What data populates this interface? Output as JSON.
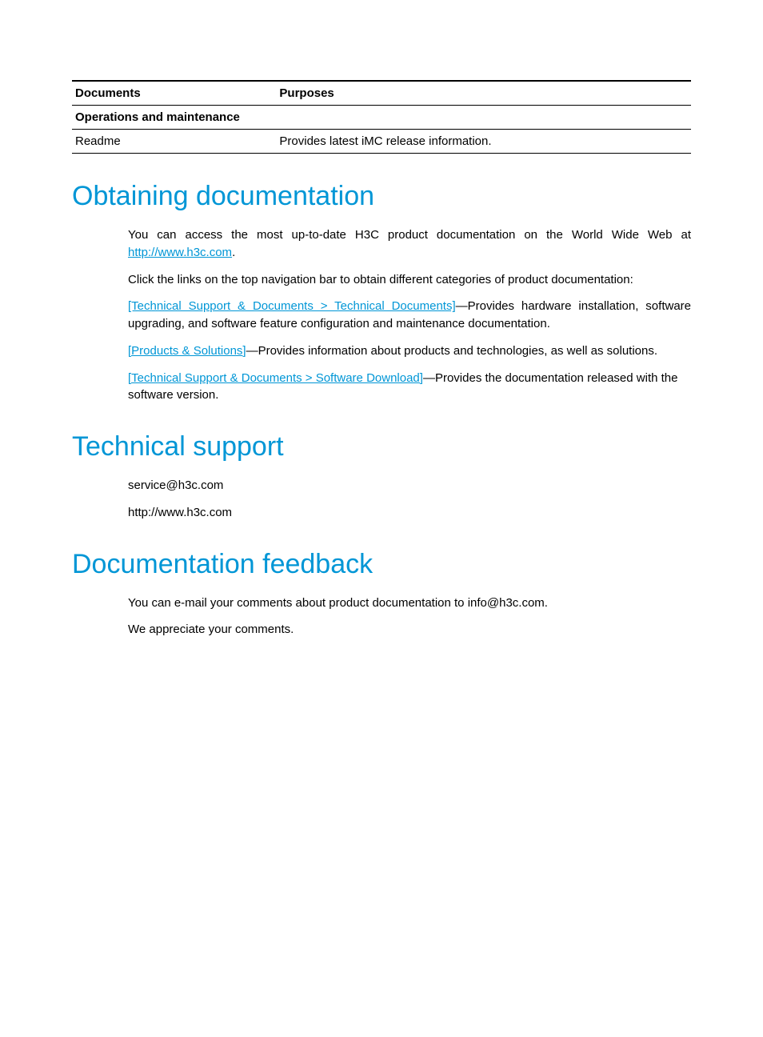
{
  "colors": {
    "heading": "#0096d6",
    "link": "#0096d6",
    "text": "#000000",
    "border": "#000000",
    "background": "#ffffff"
  },
  "table": {
    "columns": [
      "Documents",
      "Purposes"
    ],
    "section_header": "Operations and maintenance",
    "rows": [
      {
        "doc": "Readme",
        "purpose": "Provides latest iMC release information."
      }
    ]
  },
  "sections": {
    "obtaining": {
      "title": "Obtaining documentation",
      "intro_prefix": "You can access the most up-to-date H3C product documentation on the World Wide Web at ",
      "intro_link": "http://www.h3c.com",
      "intro_suffix": ".",
      "nav_line": "Click the links on the top navigation bar to obtain different categories of product documentation:",
      "items": [
        {
          "link": "[Technical Support & Documents > Technical Documents]",
          "text": "—Provides hardware installation, software upgrading, and software feature configuration and maintenance documentation."
        },
        {
          "link": "[Products & Solutions]",
          "text": "—Provides information about products and technologies, as well as solutions."
        },
        {
          "link": "[Technical Support & Documents > Software Download]",
          "text": "—Provides the documentation released with the software version."
        }
      ]
    },
    "technical_support": {
      "title": "Technical support",
      "lines": [
        "service@h3c.com",
        "http://www.h3c.com"
      ]
    },
    "feedback": {
      "title": "Documentation feedback",
      "lines": [
        "You can e-mail your comments about product documentation to info@h3c.com.",
        "We appreciate your comments."
      ]
    }
  }
}
